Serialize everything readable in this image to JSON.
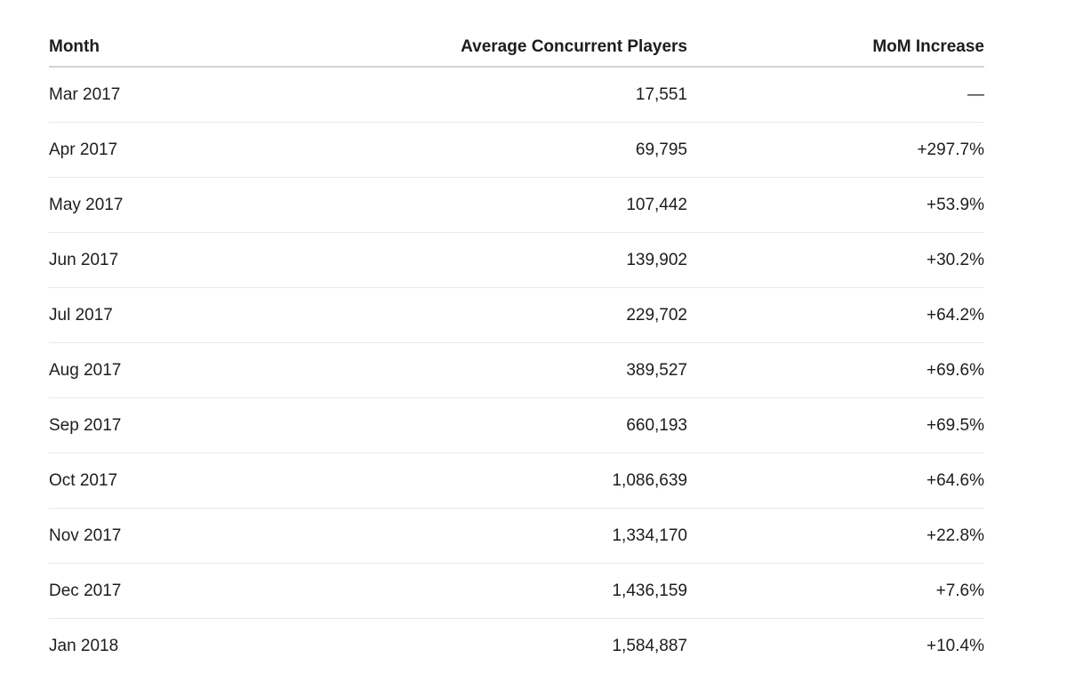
{
  "table": {
    "columns": [
      "Month",
      "Average Concurrent Players",
      "MoM Increase"
    ],
    "rows": [
      [
        "Mar 2017",
        "17,551",
        "—"
      ],
      [
        "Apr 2017",
        "69,795",
        "+297.7%"
      ],
      [
        "May 2017",
        "107,442",
        "+53.9%"
      ],
      [
        "Jun 2017",
        "139,902",
        "+30.2%"
      ],
      [
        "Jul 2017",
        "229,702",
        "+64.2%"
      ],
      [
        "Aug 2017",
        "389,527",
        "+69.6%"
      ],
      [
        "Sep 2017",
        "660,193",
        "+69.5%"
      ],
      [
        "Oct 2017",
        "1,086,639",
        "+64.6%"
      ],
      [
        "Nov 2017",
        "1,334,170",
        "+22.8%"
      ],
      [
        "Dec 2017",
        "1,436,159",
        "+7.6%"
      ],
      [
        "Jan 2018",
        "1,584,887",
        "+10.4%"
      ]
    ]
  }
}
